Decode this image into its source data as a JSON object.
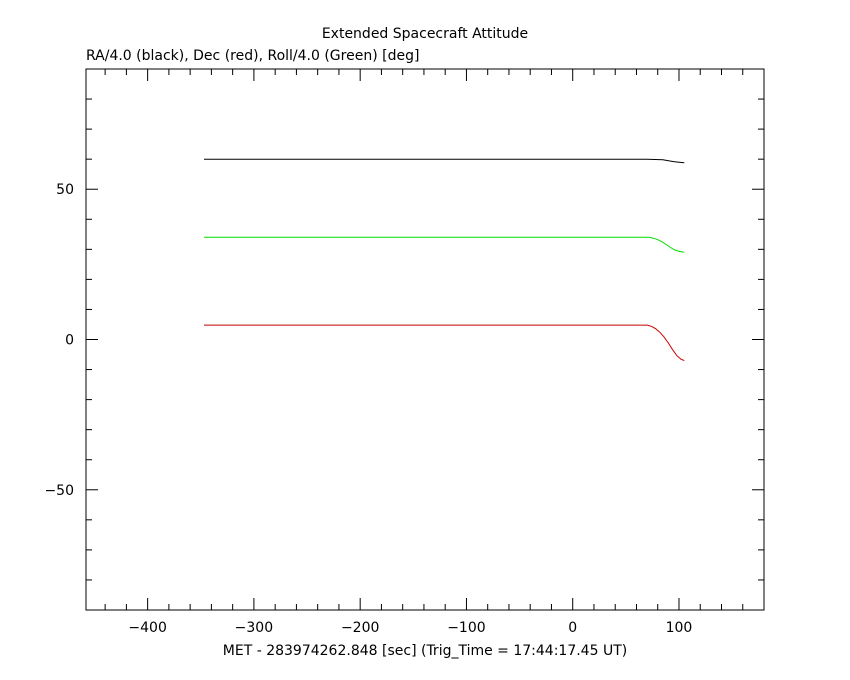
{
  "chart_data": {
    "type": "line",
    "title": "Extended Spacecraft Attitude",
    "subtitle": "RA/4.0 (black), Dec (red), Roll/4.0 (Green) [deg]",
    "xlabel": "MET - 283974262.848 [sec] (Trig_Time = 17:44:17.45 UT)",
    "ylabel": "",
    "xlim": [
      -458,
      180
    ],
    "ylim": [
      -90,
      90
    ],
    "xticks": [
      -400,
      -300,
      -200,
      -100,
      0,
      100
    ],
    "xtick_labels": [
      "−400",
      "−300",
      "−200",
      "−100",
      "0",
      "100"
    ],
    "yticks": [
      -50,
      0,
      50
    ],
    "ytick_labels": [
      "−50",
      "0",
      "50"
    ],
    "grid": false,
    "series": [
      {
        "color": "#000000",
        "x": [
          -347,
          70,
          85,
          90,
          95,
          100,
          105
        ],
        "y": [
          60,
          60,
          59.8,
          59.5,
          59.2,
          59.0,
          58.8
        ]
      },
      {
        "color": "#00dd00",
        "x": [
          -347,
          72,
          76,
          80,
          84,
          88,
          92,
          96,
          100,
          105
        ],
        "y": [
          34,
          34,
          33.7,
          33.2,
          32.5,
          31.6,
          30.6,
          29.8,
          29.3,
          29.0
        ]
      },
      {
        "color": "#cc0000",
        "x": [
          -347,
          70,
          74,
          78,
          82,
          86,
          90,
          94,
          98,
          102,
          105
        ],
        "y": [
          4.8,
          4.8,
          4.4,
          3.6,
          2.4,
          0.8,
          -1.2,
          -3.4,
          -5.4,
          -6.6,
          -7.0
        ]
      }
    ]
  }
}
